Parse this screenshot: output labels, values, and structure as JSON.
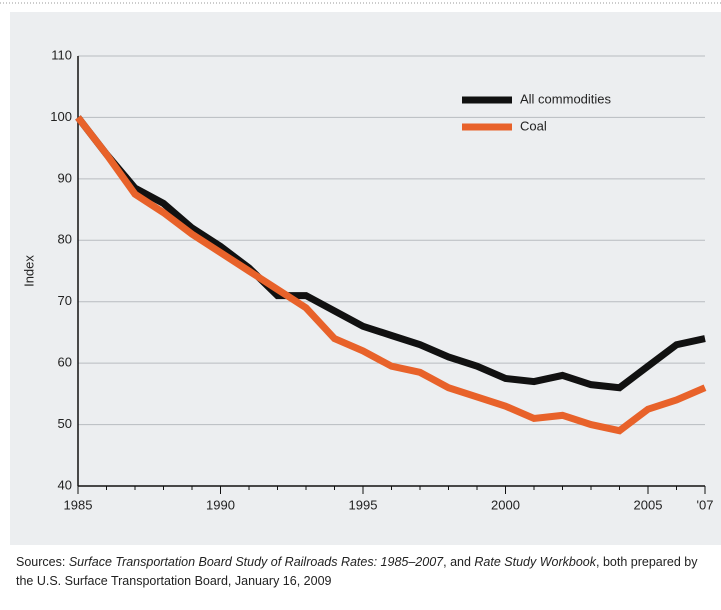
{
  "chart_data": {
    "type": "line",
    "y_label": "Index",
    "x": [
      1985,
      1986,
      1987,
      1988,
      1989,
      1990,
      1991,
      1992,
      1993,
      1994,
      1995,
      1996,
      1997,
      1998,
      1999,
      2000,
      2001,
      2002,
      2003,
      2004,
      2005,
      2006,
      2007
    ],
    "series": [
      {
        "name": "All commodities",
        "color": "#111111",
        "values": [
          100,
          94,
          88.5,
          86,
          82,
          79,
          75.5,
          71,
          71,
          68.5,
          66,
          64.5,
          63,
          61,
          59.5,
          57.5,
          57,
          58,
          56.5,
          56,
          59.5,
          63,
          64
        ]
      },
      {
        "name": "Coal",
        "color": "#e8622a",
        "values": [
          100,
          94,
          87.5,
          84.5,
          81,
          78,
          75,
          72,
          69,
          64,
          62,
          59.5,
          58.5,
          56,
          54.5,
          53,
          51,
          51.5,
          50,
          49,
          52.5,
          54,
          56
        ]
      }
    ],
    "xlim": [
      1985,
      2007
    ],
    "xticks": [
      1985,
      1990,
      1995,
      2000,
      2005,
      {
        "value": 2007,
        "label": "'07"
      }
    ],
    "ylim": [
      40,
      110
    ],
    "yticks": [
      40,
      50,
      60,
      70,
      80,
      90,
      100,
      110
    ],
    "grid": true,
    "source": [
      "Sources: ",
      "Surface Transportation Board Study of Railroads Rates: 1985–2007",
      ", and ",
      "Rate Study Workbook",
      ", both prepared by the U.S. Surface Transportation Board, January 16, 2009"
    ]
  }
}
